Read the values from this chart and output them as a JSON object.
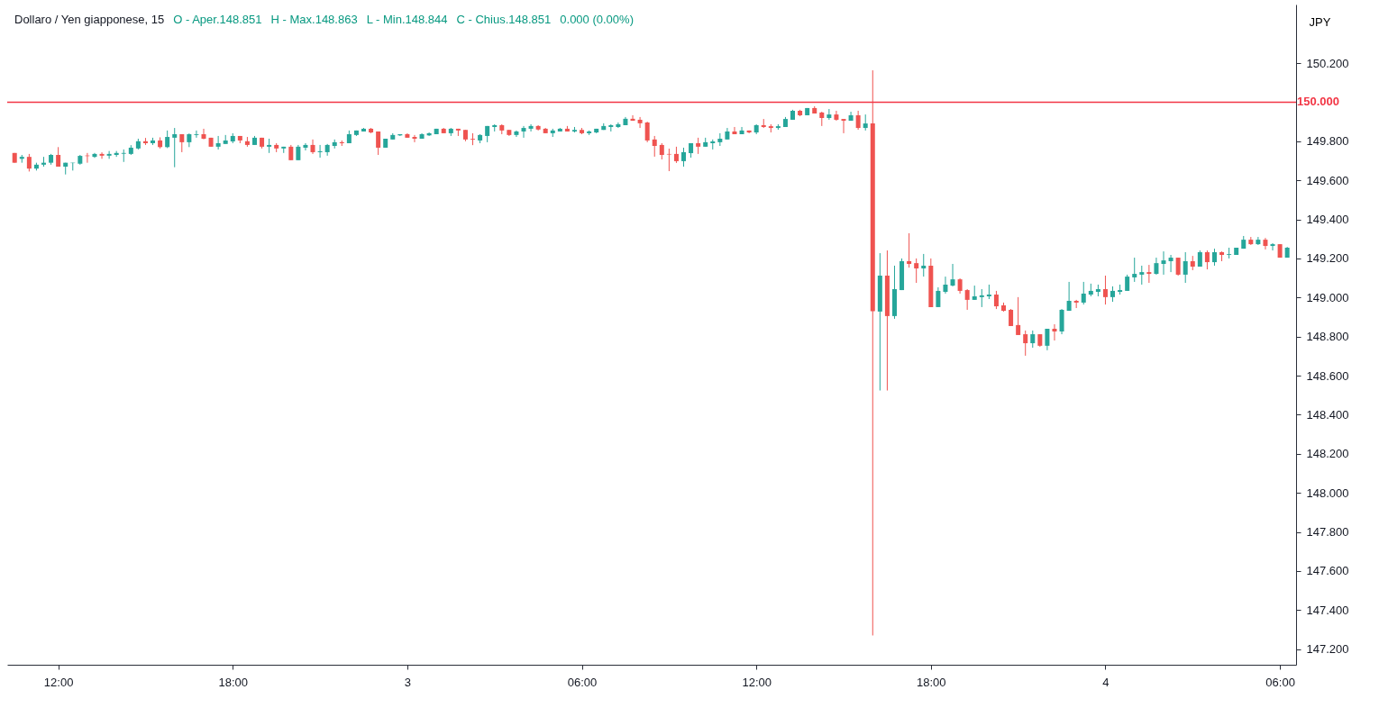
{
  "chart_data": {
    "type": "candlestick",
    "title": "Dollaro / Yen giapponese, 15",
    "annotations": [
      "O - Aper.148.851",
      "H - Max.148.863",
      "L - Min.148.844",
      "C - Chius.148.851",
      "0.000 (0.00%)"
    ],
    "ylabel": "JPY",
    "x": [
      "--10-02T10:30",
      "--10-02T10:45",
      "--10-02T11:00",
      "--10-02T11:15",
      "--10-02T11:30",
      "--10-02T11:45",
      "--10-02T12:00",
      "--10-02T12:15",
      "--10-02T12:30",
      "--10-02T12:45",
      "--10-02T13:00",
      "--10-02T13:15",
      "--10-02T13:30",
      "--10-02T13:45",
      "--10-02T14:00",
      "--10-02T14:15",
      "--10-02T14:30",
      "--10-02T14:45",
      "--10-02T15:00",
      "--10-02T15:15",
      "--10-02T15:30",
      "--10-02T15:45",
      "--10-02T16:00",
      "--10-02T16:15",
      "--10-02T16:30",
      "--10-02T16:45",
      "--10-02T17:00",
      "--10-02T17:15",
      "--10-02T17:30",
      "--10-02T17:45",
      "--10-02T18:00",
      "--10-02T18:15",
      "--10-02T18:30",
      "--10-02T18:45",
      "--10-02T19:00",
      "--10-02T19:15",
      "--10-02T19:30",
      "--10-02T19:45",
      "--10-02T20:00",
      "--10-02T20:15",
      "--10-02T20:30",
      "--10-02T20:45",
      "--10-02T21:00",
      "--10-02T21:15",
      "--10-02T21:30",
      "--10-02T21:45",
      "--10-02T22:00",
      "--10-02T22:15",
      "--10-02T22:30",
      "--10-02T22:45",
      "--10-02T23:00",
      "--10-02T23:15",
      "--10-02T23:30",
      "--10-02T23:45",
      "--10-03T00:00",
      "--10-03T00:15",
      "--10-03T00:30",
      "--10-03T00:45",
      "--10-03T01:00",
      "--10-03T01:15",
      "--10-03T01:30",
      "--10-03T01:45",
      "--10-03T02:00",
      "--10-03T02:15",
      "--10-03T02:30",
      "--10-03T02:45",
      "--10-03T03:00",
      "--10-03T03:15",
      "--10-03T03:30",
      "--10-03T03:45",
      "--10-03T04:00",
      "--10-03T04:15",
      "--10-03T04:30",
      "--10-03T04:45",
      "--10-03T05:00",
      "--10-03T05:15",
      "--10-03T05:30",
      "--10-03T05:45",
      "--10-03T06:00",
      "--10-03T06:15",
      "--10-03T06:30",
      "--10-03T06:45",
      "--10-03T07:00",
      "--10-03T07:15",
      "--10-03T07:30",
      "--10-03T07:45",
      "--10-03T08:00",
      "--10-03T08:15",
      "--10-03T08:30",
      "--10-03T08:45",
      "--10-03T09:00",
      "--10-03T09:15",
      "--10-03T09:30",
      "--10-03T09:45",
      "--10-03T10:00",
      "--10-03T10:15",
      "--10-03T10:30",
      "--10-03T10:45",
      "--10-03T11:00",
      "--10-03T11:15",
      "--10-03T11:30",
      "--10-03T11:45",
      "--10-03T12:00",
      "--10-03T12:15",
      "--10-03T12:30",
      "--10-03T12:45",
      "--10-03T13:00",
      "--10-03T13:15",
      "--10-03T13:30",
      "--10-03T13:45",
      "--10-03T14:00",
      "--10-03T14:15",
      "--10-03T14:30",
      "--10-03T14:45",
      "--10-03T15:00",
      "--10-03T15:15",
      "--10-03T15:30",
      "--10-03T15:45",
      "--10-03T16:00",
      "--10-03T16:15",
      "--10-03T16:30",
      "--10-03T16:45",
      "--10-03T17:00",
      "--10-03T17:15",
      "--10-03T17:30",
      "--10-03T17:45",
      "--10-03T18:00",
      "--10-03T18:15",
      "--10-03T18:30",
      "--10-03T18:45",
      "--10-03T19:00",
      "--10-03T19:15",
      "--10-03T19:30",
      "--10-03T19:45",
      "--10-03T20:00",
      "--10-03T20:15",
      "--10-03T20:30",
      "--10-03T20:45",
      "--10-03T21:00",
      "--10-03T21:15",
      "--10-03T21:30",
      "--10-03T21:45",
      "--10-03T22:00",
      "--10-03T22:15",
      "--10-03T22:30",
      "--10-03T22:45",
      "--10-03T23:00",
      "--10-03T23:15",
      "--10-03T23:30",
      "--10-03T23:45",
      "--10-04T00:00",
      "--10-04T00:15",
      "--10-04T00:30",
      "--10-04T00:45",
      "--10-04T01:00",
      "--10-04T01:15",
      "--10-04T01:30",
      "--10-04T01:45",
      "--10-04T02:00",
      "--10-04T02:15",
      "--10-04T02:30",
      "--10-04T02:45",
      "--10-04T03:00",
      "--10-04T03:15",
      "--10-04T03:30",
      "--10-04T03:45",
      "--10-04T04:00",
      "--10-04T04:15",
      "--10-04T04:30",
      "--10-04T04:45",
      "--10-04T05:00",
      "--10-04T05:15",
      "--10-04T05:30",
      "--10-04T05:45",
      "--10-04T06:00",
      "--10-04T06:15"
    ],
    "ohlc": [
      [
        149.74,
        149.74,
        149.69,
        149.69
      ],
      [
        149.71,
        149.73,
        149.69,
        149.72
      ],
      [
        149.72,
        149.735,
        149.645,
        149.66
      ],
      [
        149.66,
        149.69,
        149.65,
        149.68
      ],
      [
        149.68,
        149.72,
        149.67,
        149.69
      ],
      [
        149.69,
        149.735,
        149.68,
        149.73
      ],
      [
        149.73,
        149.77,
        149.67,
        149.67
      ],
      [
        149.67,
        149.69,
        149.63,
        149.69
      ],
      [
        149.688,
        149.69,
        149.65,
        149.69
      ],
      [
        149.685,
        149.73,
        149.68,
        149.725
      ],
      [
        149.727,
        149.74,
        149.69,
        149.724
      ],
      [
        149.72,
        149.74,
        149.715,
        149.735
      ],
      [
        149.735,
        149.743,
        149.71,
        149.726
      ],
      [
        149.726,
        149.75,
        149.71,
        149.735
      ],
      [
        149.73,
        149.75,
        149.72,
        149.74
      ],
      [
        149.736,
        149.758,
        149.694,
        149.74
      ],
      [
        149.735,
        149.78,
        149.73,
        149.767
      ],
      [
        149.763,
        149.813,
        149.758,
        149.8
      ],
      [
        149.8,
        149.817,
        149.781,
        149.79
      ],
      [
        149.79,
        149.818,
        149.781,
        149.804
      ],
      [
        149.804,
        149.82,
        149.763,
        149.77
      ],
      [
        149.77,
        149.855,
        149.765,
        149.822
      ],
      [
        149.818,
        149.868,
        149.667,
        149.836
      ],
      [
        149.836,
        149.836,
        149.744,
        149.795
      ],
      [
        149.795,
        149.84,
        149.77,
        149.836
      ],
      [
        149.832,
        149.855,
        149.818,
        149.836
      ],
      [
        149.836,
        149.864,
        149.81,
        149.813
      ],
      [
        149.818,
        149.818,
        149.772,
        149.772
      ],
      [
        149.772,
        149.827,
        149.758,
        149.79
      ],
      [
        149.786,
        149.832,
        149.786,
        149.804
      ],
      [
        149.799,
        149.841,
        149.79,
        149.827
      ],
      [
        149.827,
        149.827,
        149.79,
        149.804
      ],
      [
        149.8,
        149.822,
        149.772,
        149.781
      ],
      [
        149.781,
        149.827,
        149.781,
        149.818
      ],
      [
        149.818,
        149.818,
        149.763,
        149.772
      ],
      [
        149.772,
        149.813,
        149.74,
        149.781
      ],
      [
        149.781,
        149.79,
        149.744,
        149.763
      ],
      [
        149.763,
        149.772,
        149.74,
        149.772
      ],
      [
        149.772,
        149.781,
        149.703,
        149.703
      ],
      [
        149.703,
        149.781,
        149.703,
        149.772
      ],
      [
        149.767,
        149.79,
        149.753,
        149.781
      ],
      [
        149.781,
        149.809,
        149.735,
        149.744
      ],
      [
        149.744,
        149.781,
        149.716,
        149.749
      ],
      [
        149.744,
        149.786,
        149.726,
        149.781
      ],
      [
        149.776,
        149.809,
        149.763,
        149.795
      ],
      [
        149.795,
        149.804,
        149.776,
        149.79
      ],
      [
        149.79,
        149.855,
        149.79,
        149.836
      ],
      [
        149.832,
        149.855,
        149.827,
        149.855
      ],
      [
        149.85,
        149.868,
        149.85,
        149.864
      ],
      [
        149.864,
        149.868,
        149.841,
        149.845
      ],
      [
        149.85,
        149.85,
        149.73,
        149.767
      ],
      [
        149.767,
        149.813,
        149.767,
        149.813
      ],
      [
        149.809,
        149.841,
        149.809,
        149.832
      ],
      [
        149.83,
        149.836,
        149.827,
        149.836
      ],
      [
        149.836,
        149.841,
        149.818,
        149.818
      ],
      [
        149.822,
        149.832,
        149.795,
        149.813
      ],
      [
        149.813,
        149.841,
        149.813,
        149.836
      ],
      [
        149.83,
        149.845,
        149.827,
        149.841
      ],
      [
        149.836,
        149.864,
        149.836,
        149.864
      ],
      [
        149.864,
        149.868,
        149.841,
        149.841
      ],
      [
        149.841,
        149.868,
        149.827,
        149.864
      ],
      [
        149.864,
        149.864,
        149.827,
        149.855
      ],
      [
        149.858,
        149.858,
        149.8,
        149.809
      ],
      [
        149.813,
        149.841,
        149.78,
        149.809
      ],
      [
        149.804,
        149.836,
        149.79,
        149.832
      ],
      [
        149.827,
        149.878,
        149.795,
        149.878
      ],
      [
        149.873,
        149.887,
        149.85,
        149.882
      ],
      [
        149.882,
        149.887,
        149.836,
        149.855
      ],
      [
        149.858,
        149.858,
        149.827,
        149.832
      ],
      [
        149.832,
        149.855,
        149.822,
        149.85
      ],
      [
        149.85,
        149.878,
        149.818,
        149.868
      ],
      [
        149.864,
        149.887,
        149.85,
        149.878
      ],
      [
        149.878,
        149.882,
        149.855,
        149.86
      ],
      [
        149.864,
        149.868,
        149.841,
        149.841
      ],
      [
        149.841,
        149.864,
        149.822,
        149.855
      ],
      [
        149.85,
        149.868,
        149.85,
        149.864
      ],
      [
        149.864,
        149.878,
        149.85,
        149.85
      ],
      [
        149.85,
        149.873,
        149.845,
        149.858
      ],
      [
        149.858,
        149.868,
        149.836,
        149.841
      ],
      [
        149.841,
        149.855,
        149.832,
        149.85
      ],
      [
        149.845,
        149.864,
        149.841,
        149.864
      ],
      [
        149.858,
        149.892,
        149.858,
        149.878
      ],
      [
        149.873,
        149.887,
        149.85,
        149.882
      ],
      [
        149.873,
        149.896,
        149.868,
        149.887
      ],
      [
        149.882,
        149.924,
        149.882,
        149.915
      ],
      [
        149.915,
        149.933,
        149.905,
        149.905
      ],
      [
        149.91,
        149.924,
        149.868,
        149.892
      ],
      [
        149.896,
        149.9,
        149.795,
        149.804
      ],
      [
        149.809,
        149.827,
        149.721,
        149.776
      ],
      [
        149.781,
        149.79,
        149.707,
        149.73
      ],
      [
        149.735,
        149.762,
        149.647,
        149.732
      ],
      [
        149.735,
        149.772,
        149.689,
        149.698
      ],
      [
        149.698,
        149.767,
        149.67,
        149.744
      ],
      [
        149.739,
        149.79,
        149.716,
        149.79
      ],
      [
        149.79,
        149.818,
        149.735,
        149.772
      ],
      [
        149.772,
        149.818,
        149.772,
        149.795
      ],
      [
        149.79,
        149.809,
        149.758,
        149.799
      ],
      [
        149.795,
        149.841,
        149.776,
        149.813
      ],
      [
        149.809,
        149.868,
        149.809,
        149.85
      ],
      [
        149.85,
        149.873,
        149.836,
        149.836
      ],
      [
        149.836,
        149.873,
        149.836,
        149.855
      ],
      [
        149.855,
        149.855,
        149.841,
        149.845
      ],
      [
        149.845,
        149.887,
        149.836,
        149.882
      ],
      [
        149.882,
        149.914,
        149.868,
        149.873
      ],
      [
        149.877,
        149.887,
        149.845,
        149.868
      ],
      [
        149.868,
        149.887,
        149.859,
        149.877
      ],
      [
        149.873,
        149.924,
        149.873,
        149.914
      ],
      [
        149.91,
        149.961,
        149.91,
        149.956
      ],
      [
        149.956,
        149.961,
        149.928,
        149.933
      ],
      [
        149.933,
        149.97,
        149.933,
        149.97
      ],
      [
        149.97,
        149.979,
        149.942,
        149.942
      ],
      [
        149.947,
        149.951,
        149.878,
        149.919
      ],
      [
        149.919,
        149.965,
        149.91,
        149.937
      ],
      [
        149.937,
        149.956,
        149.905,
        149.91
      ],
      [
        149.914,
        149.914,
        149.841,
        149.905
      ],
      [
        149.905,
        149.951,
        149.905,
        149.933
      ],
      [
        149.933,
        149.956,
        149.859,
        149.868
      ],
      [
        149.868,
        149.937,
        149.855,
        149.891
      ],
      [
        149.891,
        150.163,
        147.27,
        148.93
      ],
      [
        148.928,
        149.227,
        148.524,
        149.112
      ],
      [
        149.112,
        149.241,
        148.524,
        148.905
      ],
      [
        148.905,
        149.163,
        148.891,
        149.043
      ],
      [
        149.038,
        149.2,
        149.038,
        149.186
      ],
      [
        149.186,
        149.329,
        149.153,
        149.172
      ],
      [
        149.176,
        149.2,
        149.075,
        149.149
      ],
      [
        149.149,
        149.223,
        149.107,
        149.163
      ],
      [
        149.163,
        149.2,
        148.951,
        148.951
      ],
      [
        148.951,
        149.052,
        148.951,
        149.034
      ],
      [
        149.029,
        149.107,
        149.02,
        149.066
      ],
      [
        149.061,
        149.172,
        149.057,
        149.093
      ],
      [
        149.093,
        149.098,
        149.02,
        149.034
      ],
      [
        149.038,
        149.043,
        148.937,
        148.988
      ],
      [
        148.988,
        149.061,
        148.988,
        149.006
      ],
      [
        149.002,
        149.043,
        148.951,
        149.011
      ],
      [
        149.006,
        149.066,
        148.992,
        149.015
      ],
      [
        149.015,
        149.034,
        148.941,
        148.955
      ],
      [
        148.96,
        148.974,
        148.928,
        148.932
      ],
      [
        148.937,
        148.941,
        148.854,
        148.854
      ],
      [
        148.859,
        149.002,
        148.808,
        148.808
      ],
      [
        148.812,
        148.831,
        148.702,
        148.766
      ],
      [
        148.766,
        148.831,
        148.743,
        148.812
      ],
      [
        148.812,
        148.812,
        148.748,
        148.753
      ],
      [
        148.753,
        148.84,
        148.73,
        148.84
      ],
      [
        148.84,
        148.863,
        148.78,
        148.826
      ],
      [
        148.826,
        148.941,
        148.812,
        148.937
      ],
      [
        148.932,
        149.08,
        148.932,
        148.983
      ],
      [
        148.983,
        148.988,
        148.946,
        148.974
      ],
      [
        148.974,
        149.08,
        148.964,
        149.02
      ],
      [
        149.015,
        149.071,
        149.006,
        149.034
      ],
      [
        149.029,
        149.066,
        149.006,
        149.043
      ],
      [
        149.043,
        149.112,
        148.964,
        149.002
      ],
      [
        149.002,
        149.057,
        148.978,
        149.034
      ],
      [
        149.029,
        149.066,
        149.015,
        149.038
      ],
      [
        149.034,
        149.117,
        149.034,
        149.107
      ],
      [
        149.103,
        149.204,
        149.08,
        149.121
      ],
      [
        149.117,
        149.163,
        149.066,
        149.13
      ],
      [
        149.13,
        149.167,
        149.075,
        149.121
      ],
      [
        149.121,
        149.204,
        149.117,
        149.176
      ],
      [
        149.172,
        149.236,
        149.117,
        149.19
      ],
      [
        149.186,
        149.218,
        149.13,
        149.204
      ],
      [
        149.204,
        149.204,
        149.112,
        149.117
      ],
      [
        149.117,
        149.232,
        149.075,
        149.186
      ],
      [
        149.186,
        149.213,
        149.14,
        149.158
      ],
      [
        149.158,
        149.241,
        149.158,
        149.232
      ],
      [
        149.232,
        149.241,
        149.144,
        149.181
      ],
      [
        149.181,
        149.25,
        149.163,
        149.232
      ],
      [
        149.232,
        149.236,
        149.186,
        149.218
      ],
      [
        149.218,
        149.255,
        149.2,
        149.222
      ],
      [
        149.218,
        149.255,
        149.218,
        149.255
      ],
      [
        149.25,
        149.315,
        149.25,
        149.296
      ],
      [
        149.296,
        149.31,
        149.269,
        149.273
      ],
      [
        149.273,
        149.31,
        149.269,
        149.296
      ],
      [
        149.296,
        149.305,
        149.246,
        149.264
      ],
      [
        149.264,
        149.278,
        149.241,
        149.273
      ],
      [
        149.273,
        149.273,
        149.204,
        149.204
      ],
      [
        149.204,
        149.259,
        149.204,
        149.255
      ]
    ],
    "colors": [
      "#ef5350",
      "#26a69a",
      "#ef5350",
      "#26a69a",
      "#26a69a",
      "#26a69a",
      "#ef5350",
      "#26a69a",
      "#26a69a",
      "#26a69a",
      "#ef5350",
      "#26a69a",
      "#ef5350",
      "#26a69a",
      "#26a69a",
      "#26a69a",
      "#26a69a",
      "#26a69a",
      "#ef5350",
      "#26a69a",
      "#ef5350",
      "#26a69a",
      "#26a69a",
      "#ef5350",
      "#26a69a",
      "#26a69a",
      "#ef5350",
      "#ef5350",
      "#26a69a",
      "#26a69a",
      "#26a69a",
      "#ef5350",
      "#ef5350",
      "#26a69a",
      "#ef5350",
      "#26a69a",
      "#ef5350",
      "#26a69a",
      "#ef5350",
      "#26a69a",
      "#26a69a",
      "#ef5350",
      "#26a69a",
      "#26a69a",
      "#26a69a",
      "#ef5350",
      "#26a69a",
      "#26a69a",
      "#26a69a",
      "#ef5350",
      "#ef5350",
      "#26a69a",
      "#26a69a",
      "#26a69a",
      "#ef5350",
      "#ef5350",
      "#26a69a",
      "#26a69a",
      "#26a69a",
      "#ef5350",
      "#26a69a",
      "#ef5350",
      "#ef5350",
      "#ef5350",
      "#26a69a",
      "#26a69a",
      "#26a69a",
      "#ef5350",
      "#ef5350",
      "#26a69a",
      "#26a69a",
      "#26a69a",
      "#ef5350",
      "#ef5350",
      "#26a69a",
      "#26a69a",
      "#ef5350",
      "#26a69a",
      "#ef5350",
      "#26a69a",
      "#26a69a",
      "#26a69a",
      "#26a69a",
      "#26a69a",
      "#26a69a",
      "#ef5350",
      "#ef5350",
      "#ef5350",
      "#ef5350",
      "#ef5350",
      "#ef5350",
      "#ef5350",
      "#26a69a",
      "#26a69a",
      "#ef5350",
      "#26a69a",
      "#26a69a",
      "#26a69a",
      "#26a69a",
      "#ef5350",
      "#26a69a",
      "#ef5350",
      "#26a69a",
      "#ef5350",
      "#ef5350",
      "#26a69a",
      "#26a69a",
      "#26a69a",
      "#ef5350",
      "#26a69a",
      "#ef5350",
      "#ef5350",
      "#26a69a",
      "#ef5350",
      "#ef5350",
      "#26a69a",
      "#ef5350",
      "#26a69a",
      "#ef5350",
      "#26a69a",
      "#ef5350",
      "#26a69a",
      "#26a69a",
      "#ef5350",
      "#ef5350",
      "#26a69a",
      "#ef5350",
      "#26a69a",
      "#26a69a",
      "#26a69a",
      "#ef5350",
      "#ef5350",
      "#26a69a",
      "#26a69a",
      "#26a69a",
      "#ef5350",
      "#ef5350",
      "#ef5350",
      "#ef5350",
      "#ef5350",
      "#26a69a",
      "#ef5350",
      "#26a69a",
      "#ef5350",
      "#26a69a",
      "#26a69a",
      "#ef5350",
      "#26a69a",
      "#26a69a",
      "#26a69a",
      "#ef5350",
      "#26a69a",
      "#26a69a",
      "#26a69a",
      "#26a69a",
      "#26a69a",
      "#ef5350",
      "#26a69a",
      "#26a69a",
      "#26a69a",
      "#ef5350",
      "#26a69a",
      "#ef5350",
      "#26a69a",
      "#ef5350",
      "#26a69a",
      "#ef5350",
      "#26a69a",
      "#26a69a",
      "#26a69a",
      "#ef5350",
      "#26a69a",
      "#ef5350",
      "#26a69a",
      "#ef5350",
      "#26a69a"
    ],
    "xlim": [
      "--10-02T10:24",
      "--10-04T06:24"
    ],
    "xticks": [
      {
        "value": "--10-02T12:00",
        "label": "12:00"
      },
      {
        "value": "--10-02T18:00",
        "label": "18:00"
      },
      {
        "value": "--10-03",
        "label": "3"
      },
      {
        "value": "--10-03T06:00",
        "label": "06:00"
      },
      {
        "value": "--10-03T12:00",
        "label": "12:00"
      },
      {
        "value": "--10-03T18:00",
        "label": "18:00"
      },
      {
        "value": "--10-04",
        "label": "4"
      },
      {
        "value": "--10-04T06:00",
        "label": "06:00"
      }
    ],
    "ylim": [
      147.12,
      150.5
    ],
    "yticks": [
      {
        "value": 147.2,
        "label": "147.200"
      },
      {
        "value": 147.4,
        "label": "147.400"
      },
      {
        "value": 147.6,
        "label": "147.600"
      },
      {
        "value": 147.8,
        "label": "147.800"
      },
      {
        "value": 148,
        "label": "148.000"
      },
      {
        "value": 148.2,
        "label": "148.200"
      },
      {
        "value": 148.4,
        "label": "148.400"
      },
      {
        "value": 148.6,
        "label": "148.600"
      },
      {
        "value": 148.8,
        "label": "148.800"
      },
      {
        "value": 149,
        "label": "149.000"
      },
      {
        "value": 149.2,
        "label": "149.200"
      },
      {
        "value": 149.4,
        "label": "149.400"
      },
      {
        "value": 149.6,
        "label": "149.600"
      },
      {
        "value": 149.8,
        "label": "149.800"
      },
      {
        "value": 150.2,
        "label": "150.200"
      }
    ],
    "ref_lines": [
      {
        "axis": "y",
        "value": 150,
        "label": "150.000",
        "color": "#f23645"
      }
    ]
  }
}
